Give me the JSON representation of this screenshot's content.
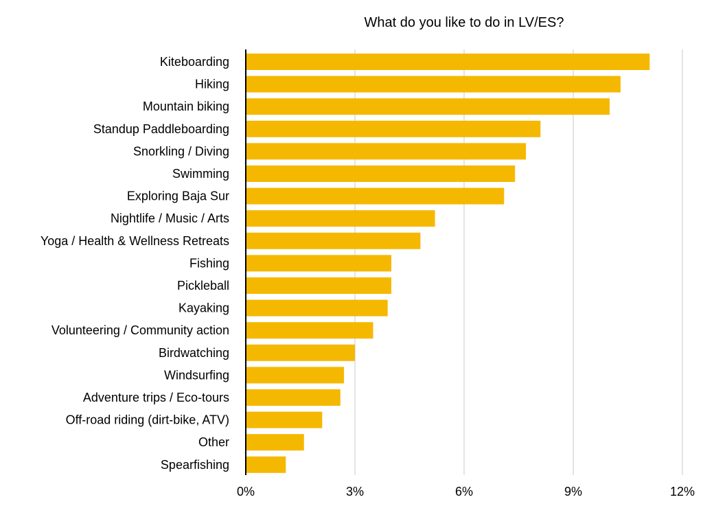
{
  "chart_data": {
    "type": "bar",
    "orientation": "horizontal",
    "title": "What do you like to do in LV/ES?",
    "categories": [
      "Kiteboarding",
      "Hiking",
      "Mountain biking",
      "Standup Paddleboarding",
      "Snorkling / Diving",
      "Swimming",
      "Exploring Baja Sur",
      "Nightlife / Music / Arts",
      "Yoga / Health & Wellness Retreats",
      "Fishing",
      "Pickleball",
      "Kayaking",
      "Volunteering / Community action",
      "Birdwatching",
      "Windsurfing",
      "Adventure trips / Eco-tours",
      "Off-road riding (dirt-bike, ATV)",
      "Other",
      "Spearfishing"
    ],
    "values": [
      11.1,
      10.3,
      10.0,
      8.1,
      7.7,
      7.4,
      7.1,
      5.2,
      4.8,
      4.0,
      4.0,
      3.9,
      3.5,
      3.0,
      2.7,
      2.6,
      2.1,
      1.6,
      1.1
    ],
    "xlim": [
      0,
      12
    ],
    "xticks": [
      "0%",
      "3%",
      "6%",
      "9%",
      "12%"
    ],
    "grid": true,
    "bar_color": "#F5B800",
    "grid_color": "#c8c8c8",
    "axis_color": "#000000"
  }
}
